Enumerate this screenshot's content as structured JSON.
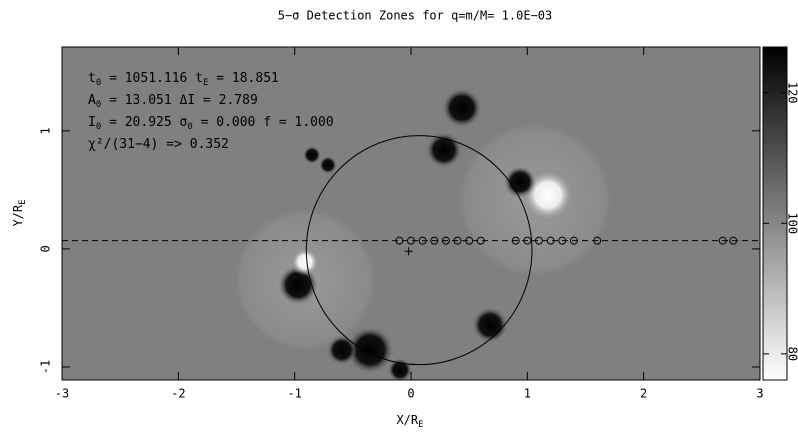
{
  "chart_data": {
    "type": "scatter",
    "title": "5−σ Detection Zones for q=m/M= 1.0E−03",
    "xlabel": [
      "X/R",
      "E"
    ],
    "ylabel": [
      "Y/R",
      "E"
    ],
    "xlim": [
      -3,
      3
    ],
    "ylim": [
      -1.11,
      1.71
    ],
    "xticks": [
      -3,
      -2,
      -1,
      0,
      1,
      2,
      3
    ],
    "yticks": [
      -1,
      0,
      1
    ],
    "annotations": [
      [
        "t",
        "0",
        " = 1051.116  t",
        "E",
        " = 18.851"
      ],
      [
        "A",
        "0",
        " = 13.051  ΔI = 2.789"
      ],
      [
        "I",
        "0",
        " = 20.925  σ",
        "0",
        " = 0.000 f = 1.000"
      ],
      [
        "χ²/(31−4) => 0.352"
      ]
    ],
    "trajectory_y": 0.07,
    "detections_x": [
      -0.1,
      0.0,
      0.1,
      0.2,
      0.3,
      0.4,
      0.5,
      0.6,
      0.9,
      1.0,
      1.1,
      1.2,
      1.3,
      1.4,
      1.6,
      2.68,
      2.77
    ],
    "lens": {
      "x": -0.02,
      "y": -0.02
    },
    "ring": {
      "x": 0.07,
      "y": -0.01,
      "r": 0.97
    },
    "colorbar": {
      "lim": [
        76,
        127
      ],
      "ticks": [
        80,
        100,
        120
      ]
    }
  }
}
